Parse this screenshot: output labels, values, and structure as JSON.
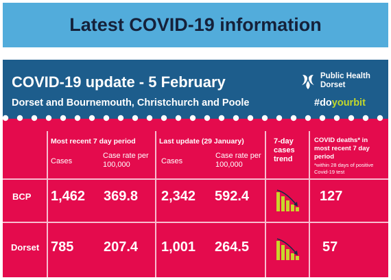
{
  "banner": {
    "title": "Latest COVID-19 information"
  },
  "card": {
    "title": "COVID-19 update - 5 February",
    "subtitle": "Dorset and Bournemouth, Christchurch and Poole",
    "hashtag_prefix": "#do",
    "hashtag_suffix": "yourbit",
    "logo_line1": "Public Health",
    "logo_line2": "Dorset"
  },
  "table": {
    "headers": {
      "recent": "Most recent 7 day period",
      "last_update": "Last update (29 January)",
      "trend": "7-day cases trend",
      "deaths": "COVID deaths* in most recent 7 day period",
      "deaths_note": "*within 28 days of positive Covid-19 test"
    },
    "subheaders": {
      "cases": "Cases",
      "case_rate": "Case rate per 100,000"
    },
    "rows": [
      {
        "area": "BCP",
        "recent_cases": "1,462",
        "recent_rate": "369.8",
        "last_cases": "2,342",
        "last_rate": "592.4",
        "trend": "down",
        "deaths": "127"
      },
      {
        "area": "Dorset",
        "recent_cases": "785",
        "recent_rate": "207.4",
        "last_cases": "1,001",
        "last_rate": "264.5",
        "trend": "down",
        "deaths": "57"
      }
    ]
  },
  "colors": {
    "banner_bg": "#52acdb",
    "header_bg": "#1d5d8c",
    "card_bg": "#e40b4d",
    "accent_green": "#c3d82a",
    "trend_bars": "#c8d62b"
  },
  "icons": [
    "public-health-logo-icon",
    "trend-down-icon"
  ]
}
